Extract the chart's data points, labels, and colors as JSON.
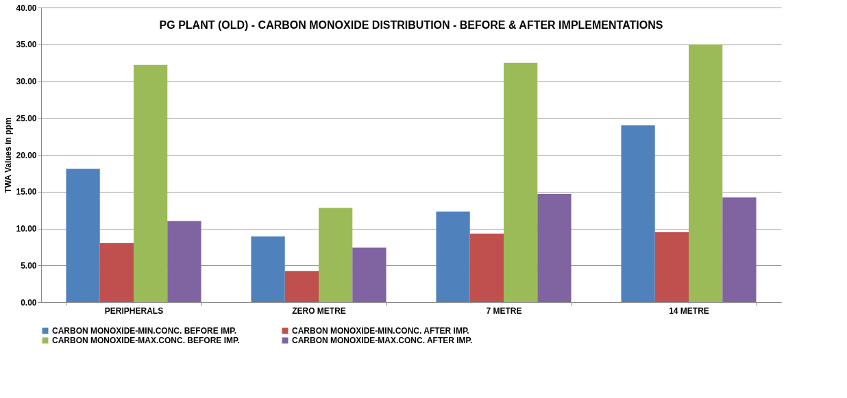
{
  "chart_data": {
    "type": "bar",
    "title": "PG PLANT (OLD) - CARBON MONOXIDE DISTRIBUTION - BEFORE & AFTER IMPLEMENTATIONS",
    "ylabel": "TWA Values in ppm",
    "categories": [
      "PERIPHERALS",
      "ZERO METRE",
      "7 METRE",
      "14 METRE"
    ],
    "series": [
      {
        "name": "CARBON MONOXIDE-MIN.CONC. BEFORE IMP.",
        "color": "#4f81bd",
        "values": [
          18.1,
          8.9,
          12.3,
          24.0
        ]
      },
      {
        "name": "CARBON MONOXIDE-MIN.CONC. AFTER IMP.",
        "color": "#c0504d",
        "values": [
          8.0,
          4.2,
          9.3,
          9.5
        ]
      },
      {
        "name": "CARBON MONOXIDE-MAX.CONC. BEFORE IMP.",
        "color": "#9bbb59",
        "values": [
          32.2,
          12.8,
          32.5,
          35.0
        ]
      },
      {
        "name": "CARBON MONOXIDE-MAX.CONC. AFTER IMP.",
        "color": "#8064a2",
        "values": [
          11.0,
          7.4,
          14.7,
          14.2
        ]
      }
    ],
    "ylim": [
      0,
      40
    ],
    "yticks": [
      {
        "value": 0,
        "label": "0.00"
      },
      {
        "value": 5,
        "label": "5.00"
      },
      {
        "value": 10,
        "label": "10.00"
      },
      {
        "value": 15,
        "label": "15.00"
      },
      {
        "value": 20,
        "label": "20.00"
      },
      {
        "value": 25,
        "label": "25.00"
      },
      {
        "value": 30,
        "label": "30.00"
      },
      {
        "value": 35,
        "label": "35.00"
      },
      {
        "value": 40,
        "label": "40.00"
      }
    ],
    "grid": "y",
    "legend": "bottom"
  }
}
